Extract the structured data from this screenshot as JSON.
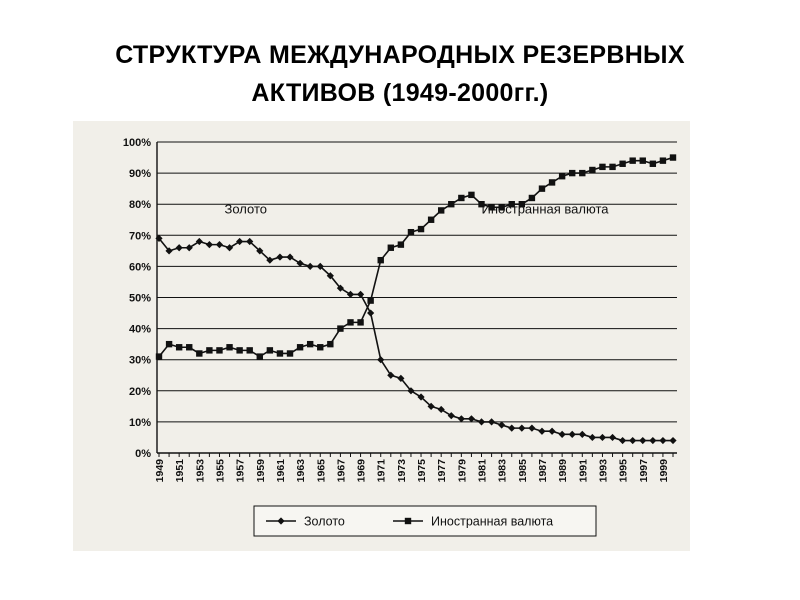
{
  "title": {
    "line1": "СТРУКТУРА МЕЖДУНАРОДНЫХ РЕЗЕРВНЫХ",
    "line2": "АКТИВОВ  (1949-2000гг.)"
  },
  "colors": {
    "ink": "#111111",
    "paper": "#f1efe9",
    "background": "#ffffff"
  },
  "chart_data": {
    "type": "line",
    "title": "",
    "xlabel": "",
    "ylabel": "",
    "ylim": [
      0,
      100
    ],
    "yticks": [
      "0%",
      "10%",
      "20%",
      "30%",
      "40%",
      "50%",
      "60%",
      "70%",
      "80%",
      "90%",
      "100%"
    ],
    "xticks": [
      "1949",
      "1951",
      "1953",
      "1955",
      "1957",
      "1959",
      "1961",
      "1963",
      "1965",
      "1967",
      "1969",
      "1971",
      "1973",
      "1975",
      "1977",
      "1979",
      "1981",
      "1983",
      "1985",
      "1987",
      "1989",
      "1991",
      "1993",
      "1995",
      "1997",
      "1999"
    ],
    "grid": "horizontal",
    "legend_position": "bottom",
    "x": [
      1949,
      1950,
      1951,
      1952,
      1953,
      1954,
      1955,
      1956,
      1957,
      1958,
      1959,
      1960,
      1961,
      1962,
      1963,
      1964,
      1965,
      1966,
      1967,
      1968,
      1969,
      1970,
      1971,
      1972,
      1973,
      1974,
      1975,
      1976,
      1977,
      1978,
      1979,
      1980,
      1981,
      1982,
      1983,
      1984,
      1985,
      1986,
      1987,
      1988,
      1989,
      1990,
      1991,
      1992,
      1993,
      1994,
      1995,
      1996,
      1997,
      1998,
      1999,
      2000
    ],
    "series": [
      {
        "name": "Золото",
        "marker": "diamond",
        "values": [
          69,
          65,
          66,
          66,
          68,
          67,
          67,
          66,
          68,
          68,
          65,
          62,
          63,
          63,
          61,
          60,
          60,
          57,
          53,
          51,
          51,
          45,
          30,
          25,
          24,
          20,
          18,
          15,
          14,
          12,
          11,
          11,
          10,
          10,
          9,
          8,
          8,
          8,
          7,
          7,
          6,
          6,
          6,
          5,
          5,
          5,
          4,
          4,
          4,
          4,
          4,
          4
        ]
      },
      {
        "name": "Иностранная валюта",
        "marker": "square",
        "values": [
          31,
          35,
          34,
          34,
          32,
          33,
          33,
          34,
          33,
          33,
          31,
          33,
          32,
          32,
          34,
          35,
          34,
          35,
          40,
          42,
          42,
          49,
          62,
          66,
          67,
          71,
          72,
          75,
          78,
          80,
          82,
          83,
          80,
          79,
          79,
          80,
          80,
          82,
          85,
          87,
          89,
          90,
          90,
          91,
          92,
          92,
          93,
          94,
          94,
          93,
          94,
          95
        ]
      }
    ],
    "annotations": [
      {
        "text": "Золото",
        "series": 0
      },
      {
        "text": "Иностранная валюта",
        "series": 1
      }
    ]
  }
}
